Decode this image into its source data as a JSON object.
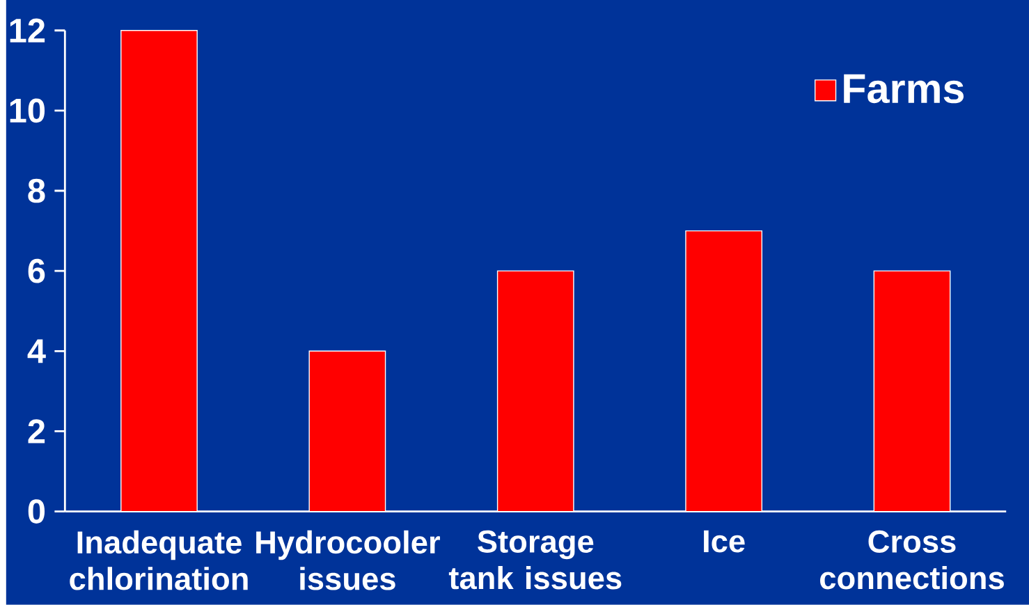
{
  "chart_data": {
    "type": "bar",
    "categories": [
      "Inadequate chlorination",
      "Hydrocooler issues",
      "Storage tank issues",
      "Ice",
      "Cross connections"
    ],
    "series": [
      {
        "name": "Farms",
        "color": "#ff0000",
        "values": [
          12,
          4,
          6,
          7,
          6
        ]
      }
    ],
    "ylim": [
      0,
      12
    ],
    "yticks": [
      0,
      2,
      4,
      6,
      8,
      10,
      12
    ],
    "legend": "top right"
  }
}
